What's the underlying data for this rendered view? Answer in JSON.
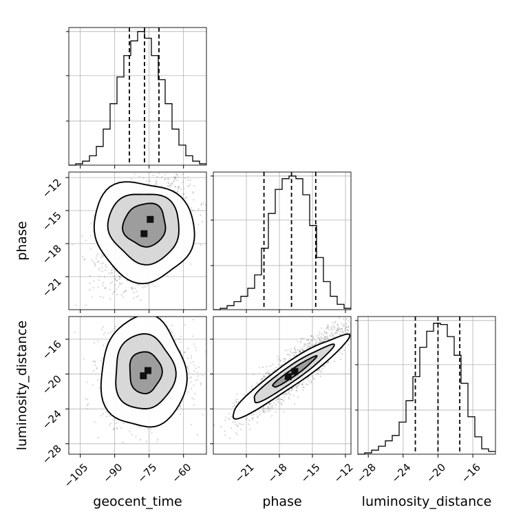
{
  "chart_data": {
    "type": "corner",
    "parameters": [
      "geocent_time",
      "phase",
      "luminosity_distance"
    ],
    "grid": true,
    "axes": {
      "geocent_time": {
        "range": [
          -110,
          -50
        ],
        "ticks": [
          -105,
          -90,
          -75,
          -60
        ],
        "tick_labels": [
          "−105",
          "−90",
          "−75",
          "−60"
        ]
      },
      "phase": {
        "range": [
          -24,
          -11.5
        ],
        "ticks": [
          -21,
          -18,
          -15,
          -12
        ],
        "tick_labels": [
          "−21",
          "−18",
          "−15",
          "−12"
        ]
      },
      "luminosity_distance": {
        "range": [
          -29.2,
          -13.4
        ],
        "ticks": [
          -28,
          -24,
          -20,
          -16
        ],
        "tick_labels": [
          "−28",
          "−24",
          "−20",
          "−16"
        ]
      }
    },
    "histograms": [
      {
        "param": "geocent_time",
        "bin_edges": [
          -110,
          -107,
          -104,
          -101,
          -98,
          -95,
          -92,
          -89,
          -86,
          -83,
          -80,
          -77,
          -74,
          -71,
          -68,
          -65,
          -62,
          -59,
          -56,
          -53,
          -50
        ],
        "counts": [
          0.0,
          0.01,
          0.03,
          0.07,
          0.14,
          0.27,
          0.46,
          0.66,
          0.82,
          0.93,
          1.0,
          0.95,
          0.82,
          0.64,
          0.46,
          0.27,
          0.15,
          0.07,
          0.03,
          0.01
        ],
        "quantiles": [
          -83.6,
          -77.0,
          -70.7
        ]
      },
      {
        "param": "phase",
        "bin_edges": [
          -24.0,
          -23.375,
          -22.75,
          -22.125,
          -21.5,
          -20.875,
          -20.25,
          -19.625,
          -19.0,
          -18.375,
          -17.75,
          -17.125,
          -16.5,
          -15.875,
          -15.25,
          -14.625,
          -14.0,
          -13.375,
          -12.75,
          -12.125,
          -11.5
        ],
        "counts": [
          0.0,
          0.01,
          0.03,
          0.06,
          0.1,
          0.16,
          0.26,
          0.46,
          0.72,
          0.9,
          0.98,
          1.0,
          0.98,
          0.86,
          0.63,
          0.39,
          0.21,
          0.1,
          0.04,
          0.01
        ],
        "quantiles": [
          -19.4,
          -16.9,
          -14.7
        ]
      },
      {
        "param": "luminosity_distance",
        "bin_edges": [
          -29.2,
          -28.41,
          -27.62,
          -26.83,
          -26.04,
          -25.25,
          -24.46,
          -23.67,
          -22.88,
          -22.09,
          -21.3,
          -20.51,
          -19.72,
          -18.93,
          -18.14,
          -17.35,
          -16.56,
          -15.77,
          -14.98,
          -14.19,
          -13.4
        ],
        "counts": [
          0.0,
          0.01,
          0.03,
          0.06,
          0.1,
          0.14,
          0.24,
          0.4,
          0.58,
          0.8,
          0.92,
          0.98,
          0.97,
          0.88,
          0.74,
          0.53,
          0.28,
          0.13,
          0.04,
          0.02
        ],
        "quantiles": [
          -22.6,
          -20.0,
          -17.5
        ]
      }
    ],
    "pairs": [
      {
        "x": "geocent_time",
        "y": "phase",
        "mean": [
          -77.0,
          -16.8
        ],
        "std": [
          9.0,
          2.4
        ],
        "corr": 0.45,
        "density_peaks": [
          [
            -74.5,
            -15.8
          ],
          [
            -77.2,
            -17.1
          ]
        ],
        "contours": [
          {
            "level": "inner",
            "cx": -76.8,
            "cy": -16.3,
            "rx": 9.5,
            "ry": 1.9,
            "angle": 55
          },
          {
            "level": "middle",
            "cx": -77.0,
            "cy": -16.5,
            "rx": 15.0,
            "ry": 3.3,
            "angle": 50
          },
          {
            "level": "outer",
            "cx": -77.4,
            "cy": -16.8,
            "rx": 21.0,
            "ry": 4.7,
            "angle": 48
          }
        ]
      },
      {
        "x": "geocent_time",
        "y": "luminosity_distance",
        "mean": [
          -77.0,
          -19.8
        ],
        "std": [
          9.0,
          2.6
        ],
        "corr": 0.1,
        "density_peaks": [
          [
            -75.5,
            -19.6
          ],
          [
            -77.5,
            -20.2
          ]
        ],
        "contours": [
          {
            "level": "inner",
            "cx": -76.8,
            "cy": -19.8,
            "rx": 7.0,
            "ry": 2.4,
            "angle": 0
          },
          {
            "level": "middle",
            "cx": -77.2,
            "cy": -19.8,
            "rx": 13.0,
            "ry": 4.3,
            "angle": 0
          },
          {
            "level": "outer",
            "cx": -77.6,
            "cy": -19.9,
            "rx": 18.5,
            "ry": 6.4,
            "angle": 0
          }
        ]
      },
      {
        "x": "phase",
        "y": "luminosity_distance",
        "mean": [
          -16.8,
          -19.8
        ],
        "std": [
          2.4,
          2.6
        ],
        "corr": 0.9,
        "density_peaks": [
          [
            -16.6,
            -19.7
          ],
          [
            -17.2,
            -20.3
          ]
        ],
        "contours": [
          {
            "level": "inner",
            "cx": -16.7,
            "cy": -19.8,
            "rx": 2.4,
            "ry": 0.4,
            "angle": 35
          },
          {
            "level": "middle",
            "cx": -16.9,
            "cy": -20.0,
            "rx": 4.4,
            "ry": 0.85,
            "angle": 35
          },
          {
            "level": "outer",
            "cx": -17.1,
            "cy": -20.2,
            "rx": 6.4,
            "ry": 1.3,
            "angle": 35
          }
        ]
      }
    ]
  }
}
